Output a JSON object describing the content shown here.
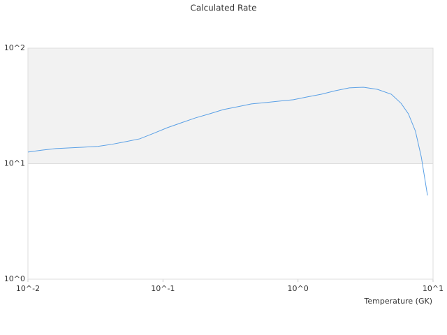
{
  "chart_data": {
    "type": "line",
    "title": "Calculated Rate",
    "x_label": "Temperature (GK)",
    "log_x": true,
    "log_y": true,
    "grid": true,
    "xlim": [
      0.01,
      10
    ],
    "ylim": [
      1,
      100
    ],
    "xticks": [
      {
        "value": 0.01,
        "label": "10^-2"
      },
      {
        "value": 0.1,
        "label": "10^-1"
      },
      {
        "value": 1,
        "label": "10^0"
      },
      {
        "value": 10,
        "label": "10^1"
      }
    ],
    "yticks": [
      {
        "value": 1,
        "label": "10^0"
      },
      {
        "value": 10,
        "label": "10^1"
      },
      {
        "value": 100,
        "label": "10^2"
      }
    ],
    "x": [
      0.01,
      0.0127,
      0.0161,
      0.0204,
      0.0259,
      0.0329,
      0.0417,
      0.0529,
      0.0672,
      0.0852,
      0.108,
      0.137,
      0.174,
      0.221,
      0.28,
      0.356,
      0.452,
      0.573,
      0.728,
      0.924,
      1.17,
      1.49,
      1.89,
      2.4,
      3.05,
      3.87,
      4.91,
      5.8,
      6.57,
      7.41,
      8.19,
      9.1
    ],
    "series": [
      {
        "color": "#5aa0e6",
        "values": [
          12.6,
          13.1,
          13.5,
          13.7,
          13.9,
          14.1,
          14.7,
          15.5,
          16.4,
          18.3,
          20.5,
          22.6,
          24.9,
          27.0,
          29.4,
          31.1,
          32.9,
          33.8,
          34.8,
          35.8,
          37.8,
          39.9,
          42.8,
          45.3,
          45.9,
          44.0,
          39.9,
          33.3,
          27.0,
          19.1,
          11.4,
          5.31
        ]
      }
    ]
  }
}
